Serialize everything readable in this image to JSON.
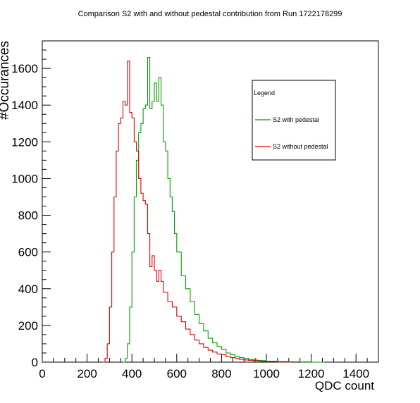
{
  "chart_data": {
    "type": "line",
    "title": "Comparison S2 with and without pedestal contribution from Run 1722178299",
    "xlabel": "QDC count",
    "ylabel": "#Occurances",
    "xlim": [
      0,
      1500
    ],
    "ylim": [
      0,
      1750
    ],
    "x_ticks": [
      0,
      200,
      400,
      600,
      800,
      1000,
      1200,
      1400
    ],
    "y_ticks": [
      0,
      200,
      400,
      600,
      800,
      1000,
      1200,
      1400,
      1600
    ],
    "grid": false,
    "legend": {
      "title": "Legend",
      "position": "top-right"
    },
    "series": [
      {
        "name": "S2 with pedestal",
        "color": "#00a000",
        "x": [
          360,
          370,
          380,
          390,
          400,
          410,
          420,
          430,
          440,
          450,
          460,
          470,
          480,
          490,
          500,
          510,
          520,
          530,
          540,
          550,
          560,
          570,
          580,
          590,
          600,
          620,
          640,
          660,
          680,
          700,
          720,
          740,
          760,
          780,
          800,
          820,
          840,
          860,
          880,
          900,
          920,
          940,
          960,
          980,
          1000,
          1050,
          1100,
          1150,
          1200,
          1250
        ],
        "y": [
          0,
          20,
          100,
          300,
          600,
          900,
          1100,
          1250,
          1300,
          1380,
          1400,
          1660,
          1380,
          1420,
          1520,
          1420,
          1550,
          1400,
          1200,
          1150,
          1000,
          900,
          820,
          700,
          600,
          470,
          400,
          330,
          260,
          210,
          170,
          130,
          105,
          85,
          70,
          50,
          40,
          30,
          25,
          20,
          15,
          12,
          10,
          8,
          5,
          3,
          2,
          1,
          0,
          0
        ]
      },
      {
        "name": "S2 without pedestal",
        "color": "#e00000",
        "x": [
          270,
          280,
          290,
          300,
          310,
          320,
          330,
          340,
          350,
          360,
          370,
          380,
          390,
          400,
          410,
          420,
          430,
          440,
          450,
          460,
          470,
          480,
          490,
          500,
          510,
          520,
          530,
          540,
          560,
          580,
          600,
          620,
          640,
          660,
          680,
          700,
          720,
          740,
          760,
          780,
          800,
          820,
          840,
          860,
          880,
          900,
          920,
          940,
          960,
          980,
          1000,
          1050,
          1100
        ],
        "y": [
          0,
          20,
          100,
          300,
          600,
          900,
          1150,
          1300,
          1330,
          1420,
          1400,
          1640,
          1360,
          1330,
          1200,
          1150,
          1000,
          920,
          880,
          860,
          700,
          520,
          580,
          500,
          440,
          500,
          440,
          380,
          330,
          300,
          250,
          220,
          180,
          150,
          120,
          100,
          80,
          65,
          55,
          45,
          40,
          30,
          25,
          20,
          15,
          12,
          10,
          8,
          6,
          4,
          3,
          1,
          0
        ]
      }
    ]
  }
}
